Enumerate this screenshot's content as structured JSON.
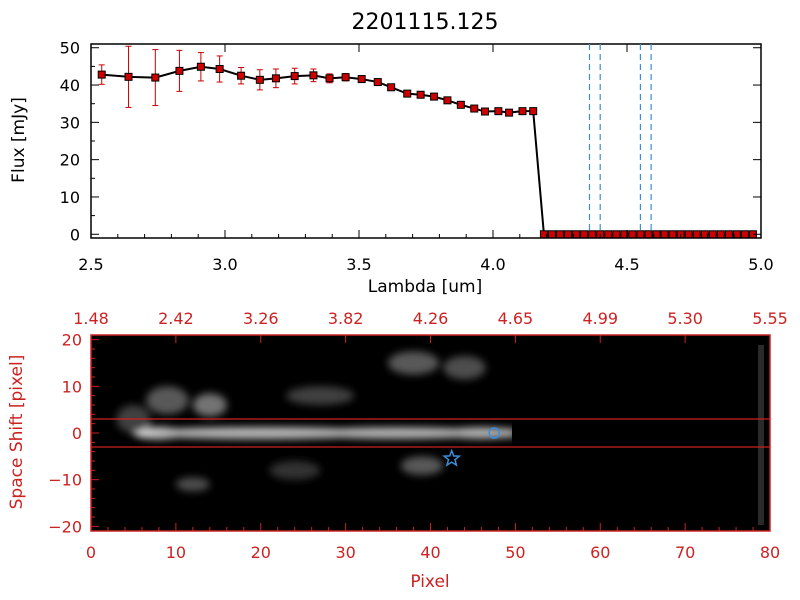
{
  "colors": {
    "spectrum": "#000000",
    "marker": "#cc0000",
    "errorbar": "#cc0000",
    "dashed_lines": "#3b8fd9",
    "image_frame": "#cc2222",
    "image_labels": "#cc2222",
    "slit_lines": "#cc2222",
    "star_marker": "#3b8fd9"
  },
  "chart_data": [
    {
      "type": "line",
      "title": "2201115.125",
      "xlabel": "Lambda [um]",
      "ylabel": "Flux [mJy]",
      "xlim": [
        2.5,
        5.0
      ],
      "ylim": [
        -1,
        51
      ],
      "xticks": [
        "2.5",
        "3.0",
        "3.5",
        "4.0",
        "4.5",
        "5.0"
      ],
      "xtick_values": [
        2.5,
        3.0,
        3.5,
        4.0,
        4.5,
        5.0
      ],
      "yticks": [
        "0",
        "10",
        "20",
        "30",
        "40",
        "50"
      ],
      "ytick_values": [
        0,
        10,
        20,
        30,
        40,
        50
      ],
      "grid": false,
      "series": [
        {
          "x": [
            2.54,
            2.64,
            2.74,
            2.83,
            2.91,
            2.98,
            3.06,
            3.13,
            3.19,
            3.26,
            3.33,
            3.39,
            3.45,
            3.51,
            3.57,
            3.62,
            3.68,
            3.73,
            3.78,
            3.83,
            3.88,
            3.93,
            3.97,
            4.02,
            4.06,
            4.11,
            4.15
          ],
          "y": [
            42.8,
            42.2,
            42.0,
            43.8,
            44.9,
            44.3,
            42.5,
            41.4,
            41.8,
            42.4,
            42.6,
            41.8,
            42.1,
            41.6,
            40.8,
            39.4,
            37.7,
            37.4,
            36.9,
            35.9,
            34.7,
            33.7,
            32.9,
            33.0,
            32.6,
            33.0,
            33.0
          ],
          "yerr": [
            2.6,
            8.2,
            7.5,
            5.5,
            3.8,
            3.5,
            2.2,
            2.7,
            2.5,
            2.1,
            1.7,
            1.2,
            1.0,
            0.9,
            0.7,
            0.6,
            0.6,
            0.6,
            0.5,
            0.5,
            0.5,
            0.5,
            0.6,
            0.6,
            0.7,
            0.8,
            0.9
          ]
        },
        {
          "x": [
            4.19,
            4.22,
            4.25,
            4.28,
            4.31,
            4.34,
            4.37,
            4.4,
            4.43,
            4.46,
            4.49,
            4.52,
            4.55,
            4.58,
            4.61,
            4.64,
            4.67,
            4.7,
            4.73,
            4.76,
            4.79,
            4.82,
            4.85,
            4.88,
            4.91,
            4.94,
            4.97
          ],
          "y": [
            0,
            0,
            0,
            0,
            0,
            0,
            0,
            0,
            0,
            0,
            0,
            0,
            0,
            0,
            0,
            0,
            0,
            0,
            0,
            0,
            0,
            0,
            0,
            0,
            0,
            0,
            0
          ]
        }
      ],
      "vlines_dashed": [
        4.36,
        4.4,
        4.55,
        4.59
      ]
    },
    {
      "type": "heatmap",
      "xlabel": "Pixel",
      "ylabel": "Space Shift [pixel]",
      "xlim": [
        0,
        80
      ],
      "ylim": [
        -21,
        21
      ],
      "xticks": [
        "0",
        "10",
        "20",
        "30",
        "40",
        "50",
        "60",
        "70",
        "80"
      ],
      "xtick_values": [
        0,
        10,
        20,
        30,
        40,
        50,
        60,
        70,
        80
      ],
      "yticks": [
        "−20",
        "−10",
        "0",
        "10",
        "20"
      ],
      "ytick_values": [
        -20,
        -10,
        0,
        10,
        20
      ],
      "top_axis_labels": [
        "1.48",
        "2.42",
        "3.26",
        "3.82",
        "4.26",
        "4.65",
        "4.99",
        "5.30",
        "5.55"
      ],
      "top_axis_positions": [
        0,
        10,
        20,
        30,
        40,
        50,
        60,
        70,
        80
      ],
      "hlines": [
        3,
        -3
      ],
      "markers": [
        {
          "shape": "star",
          "x": 42.5,
          "y": -5.5
        },
        {
          "shape": "circle",
          "x": 47.5,
          "y": 0
        }
      ],
      "blobs": [
        {
          "x": 8,
          "y": 0,
          "w": 3,
          "h": 1.2,
          "i": 1.0
        },
        {
          "x": 20,
          "y": 0,
          "w": 14,
          "h": 1.3,
          "i": 0.65
        },
        {
          "x": 36,
          "y": 0,
          "w": 10,
          "h": 1.3,
          "i": 0.45
        },
        {
          "x": 46,
          "y": 0,
          "w": 4,
          "h": 1.3,
          "i": 0.45
        },
        {
          "x": 9,
          "y": 7,
          "w": 2.5,
          "h": 3.0,
          "i": 0.35
        },
        {
          "x": 14,
          "y": 6,
          "w": 2.0,
          "h": 2.5,
          "i": 0.45
        },
        {
          "x": 27,
          "y": 8,
          "w": 4.0,
          "h": 2.0,
          "i": 0.25
        },
        {
          "x": 38,
          "y": 15,
          "w": 3.0,
          "h": 2.5,
          "i": 0.35
        },
        {
          "x": 44,
          "y": 14,
          "w": 2.5,
          "h": 2.5,
          "i": 0.3
        },
        {
          "x": 39,
          "y": -7,
          "w": 2.5,
          "h": 2.0,
          "i": 0.35
        },
        {
          "x": 12,
          "y": -11,
          "w": 2.0,
          "h": 1.5,
          "i": 0.3
        },
        {
          "x": 24,
          "y": -8,
          "w": 3.0,
          "h": 2.0,
          "i": 0.2
        },
        {
          "x": 5,
          "y": 3,
          "w": 2.0,
          "h": 3.0,
          "i": 0.25
        }
      ]
    }
  ]
}
